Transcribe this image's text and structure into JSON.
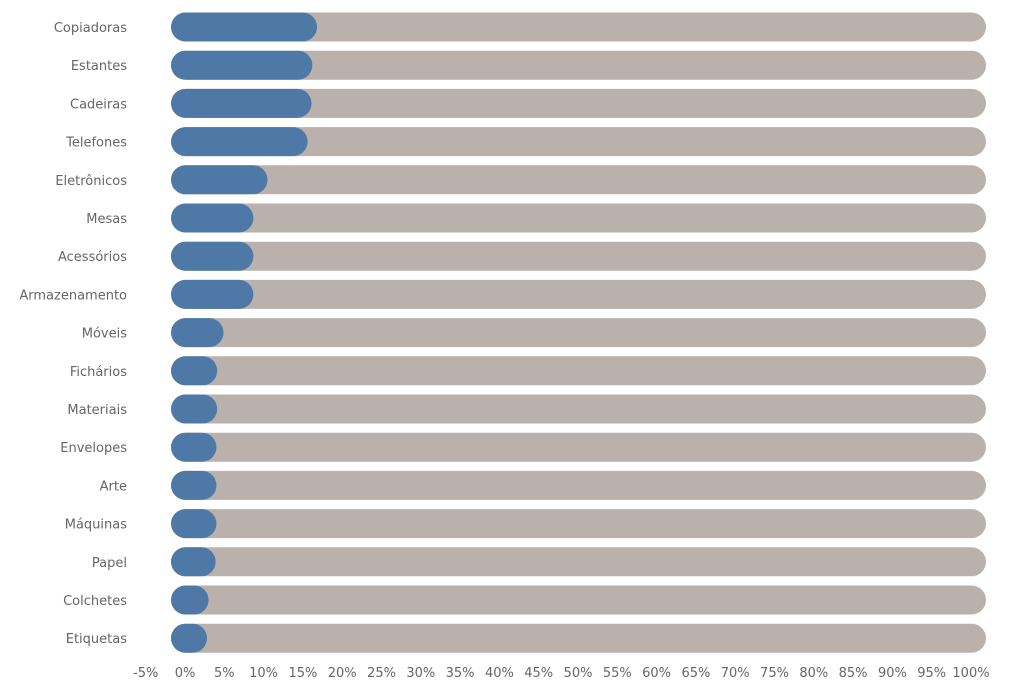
{
  "chart_data": {
    "type": "bar",
    "orientation": "horizontal",
    "categories": [
      "Copiadoras",
      "Estantes",
      "Cadeiras",
      "Telefones",
      "Eletrônicos",
      "Mesas",
      "Acessórios",
      "Armazenamento",
      "Móveis",
      "Fichários",
      "Materiais",
      "Envelopes",
      "Arte",
      "Máquinas",
      "Papel",
      "Colchetes",
      "Etiquetas"
    ],
    "series": [
      {
        "values": [
          16.8,
          16.2,
          16.1,
          15.6,
          10.5,
          8.7,
          8.7,
          8.7,
          4.9,
          4.1,
          4.1,
          4.0,
          4.0,
          4.0,
          3.9,
          3.0,
          2.8
        ]
      }
    ],
    "background_value": 100,
    "xlim": [
      -5,
      100
    ],
    "xticks": [
      -5,
      0,
      5,
      10,
      15,
      20,
      25,
      30,
      35,
      40,
      45,
      50,
      55,
      60,
      65,
      70,
      75,
      80,
      85,
      90,
      95,
      100
    ],
    "tick_format": "{v}%",
    "colors": {
      "bar": "#4e79a7",
      "background": "#bab0ac",
      "label": "#666666"
    },
    "grid": false,
    "title": "",
    "xlabel": "",
    "ylabel": ""
  }
}
